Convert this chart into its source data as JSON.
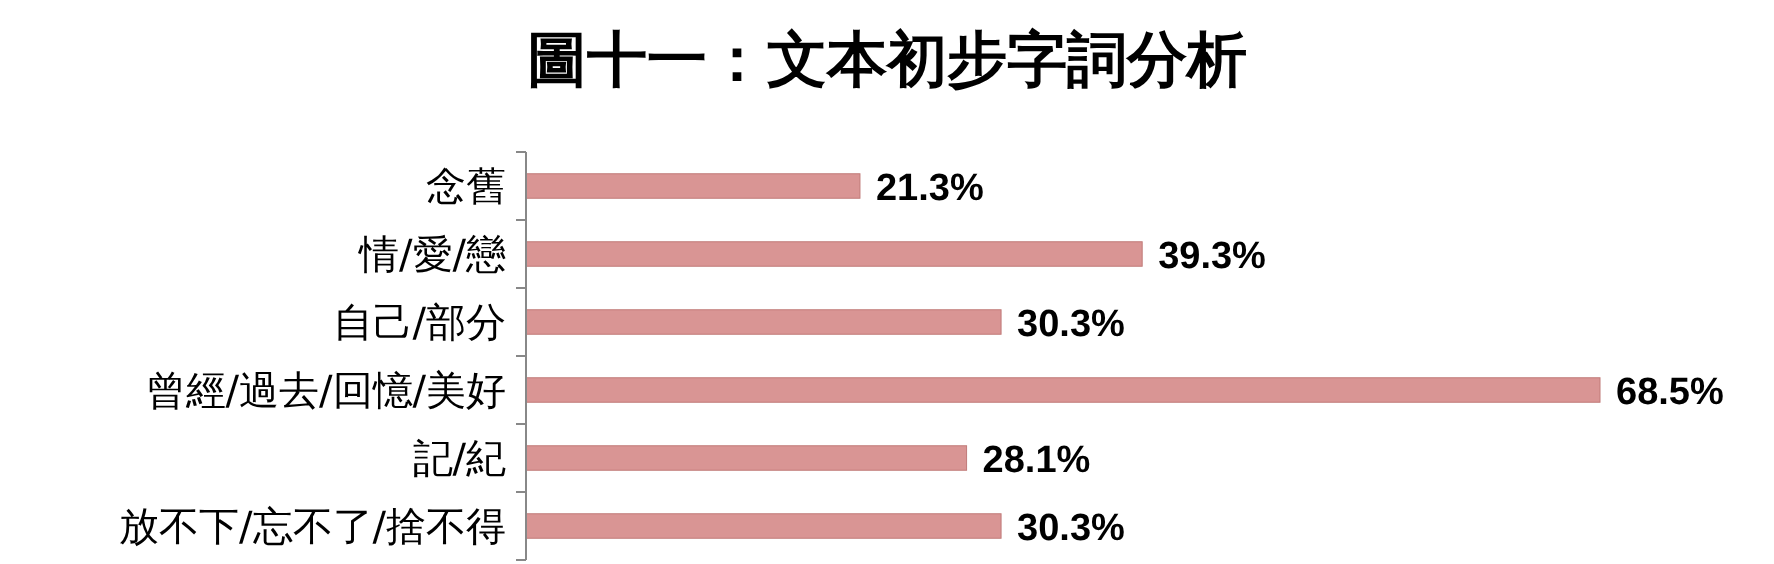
{
  "chart_data": {
    "type": "bar",
    "orientation": "horizontal",
    "title": "圖十一：文本初步字詞分析",
    "categories": [
      "念舊",
      "情/愛/戀",
      "自己/部分",
      "曾經/過去/回憶/美好",
      "記/紀",
      "放不下/忘不了/捨不得"
    ],
    "values": [
      21.3,
      39.3,
      30.3,
      68.5,
      28.1,
      30.3
    ],
    "value_labels": [
      "21.3%",
      "39.3%",
      "30.3%",
      "68.5%",
      "28.1%",
      "30.3%"
    ],
    "color": "#d99594"
  }
}
